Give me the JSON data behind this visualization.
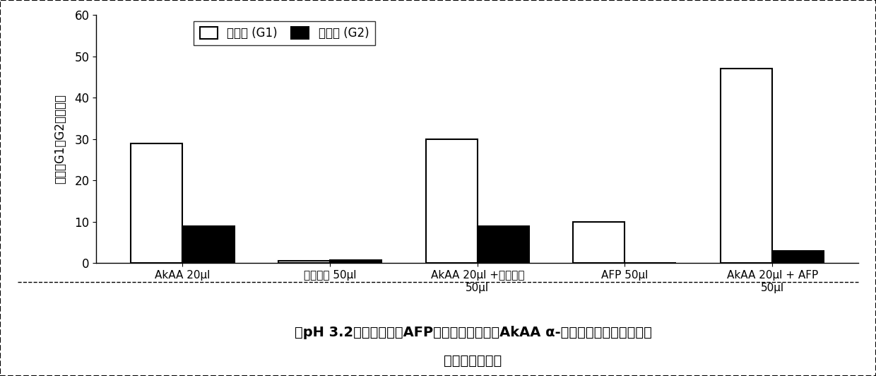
{
  "categories": [
    "AkAA 20μl",
    "胃蛋白酶 50μl",
    "AkAA 20μl +胃蛋白酶\n50μl",
    "AFP 50μl",
    "AkAA 20μl + AFP\n50μl"
  ],
  "g1_values": [
    29,
    0.5,
    30,
    10,
    47
  ],
  "g2_values": [
    9,
    0.8,
    9,
    0,
    3
  ],
  "g1_color": "#ffffff",
  "g2_color": "#000000",
  "bar_edgecolor": "#000000",
  "ylabel": "釋放的G1和G2的峰面积",
  "ylim": [
    0,
    60
  ],
  "yticks": [
    0,
    10,
    20,
    30,
    40,
    50,
    60
  ],
  "legend_g1": "葯葡糖 (G1)",
  "legend_g2": "麦芽糖 (G2)",
  "title_line1": "在pH 3.2在胃蛋白酶和AFP蛋白酶存在下通过AkAA α-淠粉酶从玉米面粉中释放",
  "title_line2": "葯葡糖和麦芽糖",
  "bar_width": 0.35,
  "background_color": "#ffffff"
}
